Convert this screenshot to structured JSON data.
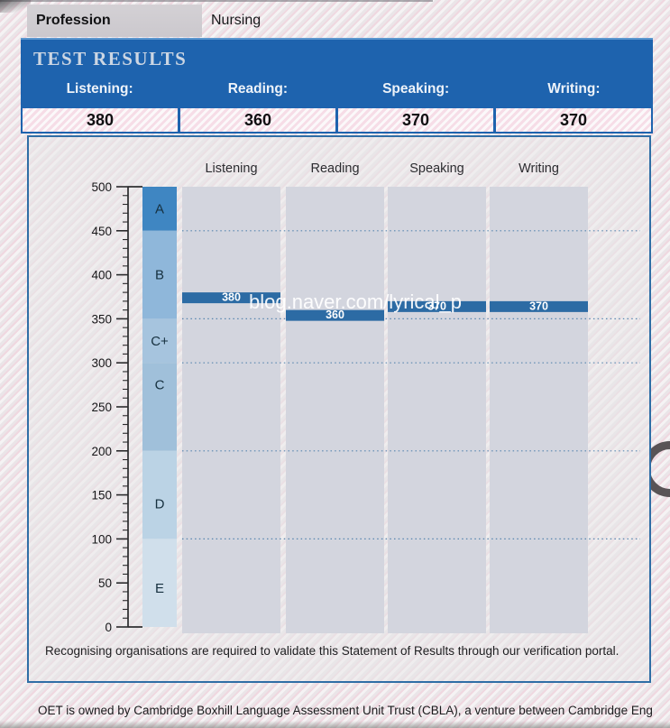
{
  "page": {
    "profession_label": "Profession",
    "profession_value": "Nursing",
    "title": "TEST RESULTS",
    "watermark": "blog.naver.com/lyrical_p",
    "footer_note": "Recognising organisations are required to validate this Statement of Results through our verification portal.",
    "ownership_note": "OET is owned by Cambridge Boxhill Language Assessment Unit Trust (CBLA), a venture between Cambridge Eng"
  },
  "score_summary": {
    "columns": [
      {
        "label": "Listening:",
        "value": "380"
      },
      {
        "label": "Reading:",
        "value": "360"
      },
      {
        "label": "Speaking:",
        "value": "370"
      },
      {
        "label": "Writing:",
        "value": "370"
      }
    ]
  },
  "chart_data": {
    "type": "bar",
    "title": "",
    "categories": [
      "Listening",
      "Reading",
      "Speaking",
      "Writing"
    ],
    "values": [
      380,
      360,
      370,
      370
    ],
    "xlabel": "",
    "ylabel": "",
    "ylim": [
      0,
      500
    ],
    "yticks": [
      0,
      50,
      100,
      150,
      200,
      250,
      300,
      350,
      400,
      450,
      500
    ],
    "minor_tick_step": 10,
    "gridlines": [
      450,
      350,
      300,
      200,
      100
    ],
    "grade_bands": [
      {
        "grade": "A",
        "from": 450,
        "to": 500,
        "label_at": 475,
        "color": "#3f86c2"
      },
      {
        "grade": "B",
        "from": 350,
        "to": 450,
        "label_at": 400,
        "color": "#8fb7da"
      },
      {
        "grade": "C+",
        "from": 300,
        "to": 350,
        "label_at": 325,
        "color": "#a6c4de"
      },
      {
        "grade": "C",
        "from": 200,
        "to": 300,
        "label_at": 275,
        "color": "#a0c0da"
      },
      {
        "grade": "D",
        "from": 100,
        "to": 200,
        "label_at": 140,
        "color": "#bbd3e5"
      },
      {
        "grade": "E",
        "from": 0,
        "to": 100,
        "label_at": 44,
        "color": "#d0dfeb"
      }
    ],
    "bar_color": "#2c6ba4",
    "bar_label_color": "#ffffff",
    "column_bg": "#d3d5de",
    "grid_color": "#4a7dab",
    "axis_color": "#2a2a2c",
    "header_blue": "#1e63ae",
    "panel_border": "#2f6ea6"
  }
}
